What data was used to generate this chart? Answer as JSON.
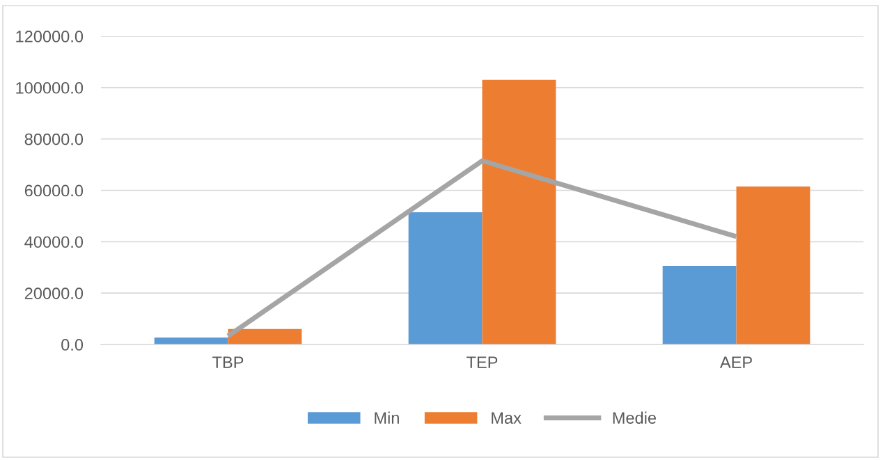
{
  "chart_data": {
    "type": "bar",
    "categories": [
      "TBP",
      "TEP",
      "AEP"
    ],
    "series": [
      {
        "name": "Min",
        "color": "#5b9bd5",
        "values": [
          2700,
          51500,
          30600
        ]
      },
      {
        "name": "Max",
        "color": "#ed7d31",
        "values": [
          6000,
          103000,
          61500
        ]
      },
      {
        "name": "Medie",
        "color": "#a5a5a5",
        "type": "line",
        "values": [
          3300,
          71500,
          42000
        ]
      }
    ],
    "ylim": [
      0,
      120000
    ],
    "yticks": [
      {
        "value": 0,
        "label": "0.0"
      },
      {
        "value": 20000,
        "label": "20000.0"
      },
      {
        "value": 40000,
        "label": "40000.0"
      },
      {
        "value": 60000,
        "label": "60000.0"
      },
      {
        "value": 80000,
        "label": "80000.0"
      },
      {
        "value": 100000,
        "label": "100000.0"
      },
      {
        "value": 120000,
        "label": "120000.0"
      }
    ],
    "grid": "y",
    "legend": "bottom",
    "marker": "none"
  }
}
